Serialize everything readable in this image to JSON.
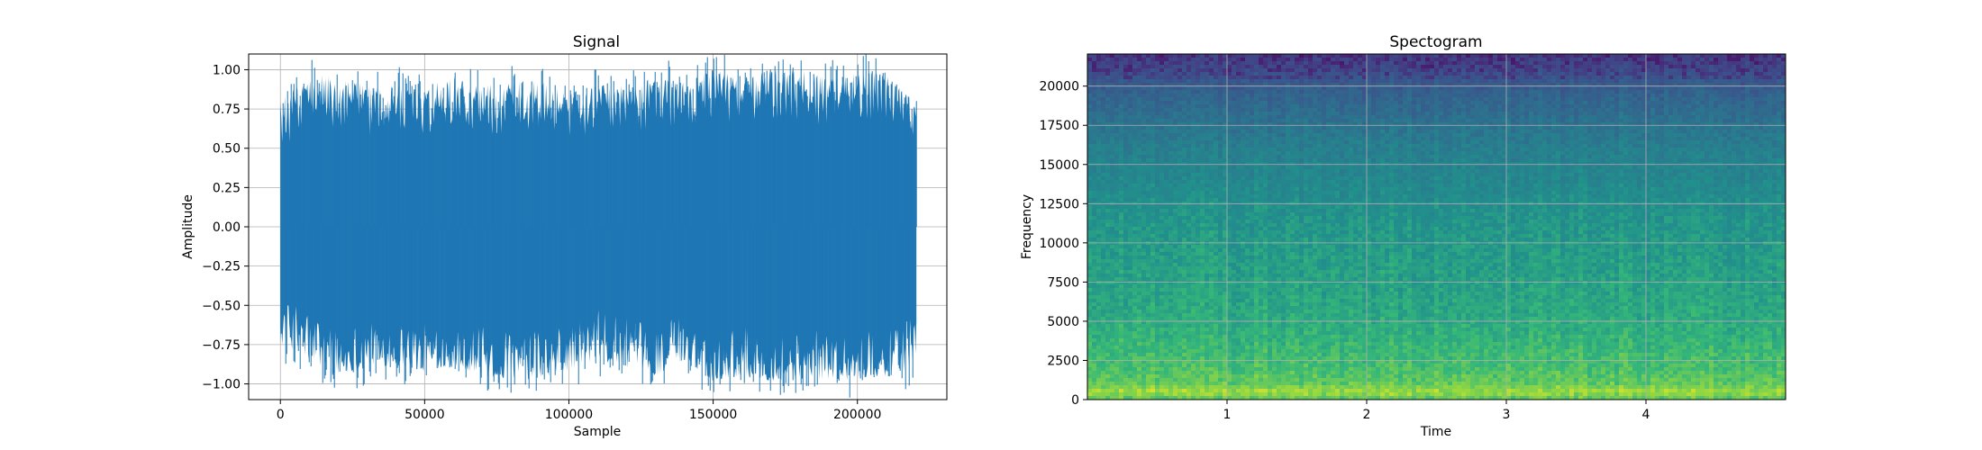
{
  "chart_data": [
    {
      "type": "line",
      "title": "Signal",
      "xlabel": "Sample",
      "ylabel": "Amplitude",
      "xlim": [
        -11000,
        231000
      ],
      "ylim": [
        -1.1,
        1.1
      ],
      "grid": true,
      "xticks": [
        0,
        50000,
        100000,
        150000,
        200000
      ],
      "xtick_labels": [
        "0",
        "50000",
        "100000",
        "150000",
        "200000"
      ],
      "yticks": [
        -1.0,
        -0.75,
        -0.5,
        -0.25,
        0.0,
        0.25,
        0.5,
        0.75,
        1.0
      ],
      "ytick_labels": [
        "−1.00",
        "−0.75",
        "−0.50",
        "−0.25",
        "0.00",
        "0.25",
        "0.50",
        "0.75",
        "1.00"
      ],
      "series": [
        {
          "color": "#1f77b4",
          "x_range": [
            0,
            220500
          ],
          "x": [
            0,
            10000,
            20000,
            30000,
            40000,
            50000,
            60000,
            70000,
            80000,
            90000,
            100000,
            110000,
            120000,
            130000,
            140000,
            150000,
            160000,
            170000,
            180000,
            190000,
            200000,
            210000,
            220500
          ],
          "upper": [
            0.8,
            0.98,
            0.95,
            0.9,
            0.92,
            0.88,
            0.97,
            0.9,
            0.92,
            0.93,
            0.85,
            0.9,
            0.9,
            0.95,
            0.93,
            1.0,
            0.95,
            1.0,
            1.0,
            0.95,
            1.0,
            0.97,
            0.78
          ],
          "lower": [
            -0.75,
            -0.85,
            -0.95,
            -0.9,
            -0.88,
            -0.92,
            -0.88,
            -0.95,
            -0.98,
            -0.97,
            -0.92,
            -0.85,
            -0.9,
            -0.95,
            -0.85,
            -0.98,
            -0.95,
            -0.98,
            -0.98,
            -0.97,
            -0.98,
            -0.95,
            -0.9
          ]
        }
      ]
    },
    {
      "type": "heatmap",
      "title": "Spectogram",
      "xlabel": "Time",
      "ylabel": "Frequency",
      "xlim": [
        0,
        5.0
      ],
      "ylim": [
        0,
        22050
      ],
      "grid": true,
      "xticks": [
        1,
        2,
        3,
        4
      ],
      "xtick_labels": [
        "1",
        "2",
        "3",
        "4"
      ],
      "yticks": [
        0,
        2500,
        5000,
        7500,
        10000,
        12500,
        15000,
        17500,
        20000
      ],
      "ytick_labels": [
        "0",
        "2500",
        "5000",
        "7500",
        "10000",
        "12500",
        "15000",
        "17500",
        "20000"
      ],
      "colormap": "viridis",
      "frequency_profile": {
        "freq": [
          0,
          500,
          1000,
          2000,
          3000,
          4500,
          6000,
          8000,
          10000,
          12000,
          14000,
          16000,
          17500,
          18500,
          19500,
          20500,
          21000,
          22050
        ],
        "level": [
          0.8,
          0.9,
          0.82,
          0.78,
          0.76,
          0.72,
          0.7,
          0.68,
          0.66,
          0.63,
          0.58,
          0.54,
          0.48,
          0.44,
          0.4,
          0.33,
          0.28,
          0.22
        ]
      }
    }
  ]
}
